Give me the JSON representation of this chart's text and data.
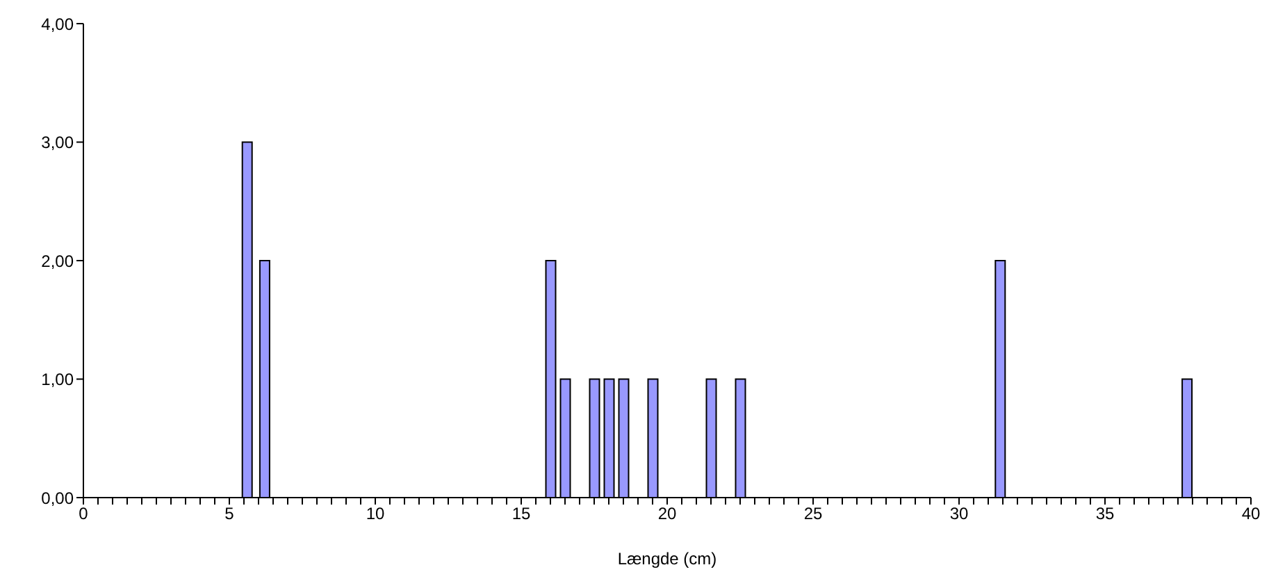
{
  "chart_data": {
    "type": "bar",
    "xlabel": "Længde (cm)",
    "x": [
      5.6,
      6.2,
      16,
      16.5,
      17.5,
      18,
      18.5,
      19.5,
      21.5,
      22.5,
      31.4,
      37.8
    ],
    "values": [
      3,
      2,
      2,
      1,
      1,
      1,
      1,
      1,
      1,
      1,
      2,
      1
    ],
    "color": "#9999ff",
    "xlim": [
      0,
      40
    ],
    "xticks": [
      0,
      {
        "value": 0.5,
        "label": null
      },
      {
        "value": 1,
        "label": null
      },
      {
        "value": 1.5,
        "label": null
      },
      {
        "value": 2,
        "label": null
      },
      {
        "value": 2.5,
        "label": null
      },
      {
        "value": 3,
        "label": null
      },
      {
        "value": 3.5,
        "label": null
      },
      {
        "value": 4,
        "label": null
      },
      {
        "value": 4.5,
        "label": null
      },
      5,
      {
        "value": 5.5,
        "label": null
      },
      {
        "value": 6,
        "label": null
      },
      {
        "value": 6.5,
        "label": null
      },
      {
        "value": 7,
        "label": null
      },
      {
        "value": 7.5,
        "label": null
      },
      {
        "value": 8,
        "label": null
      },
      {
        "value": 8.5,
        "label": null
      },
      {
        "value": 9,
        "label": null
      },
      {
        "value": 9.5,
        "label": null
      },
      10,
      {
        "value": 10.5,
        "label": null
      },
      {
        "value": 11,
        "label": null
      },
      {
        "value": 11.5,
        "label": null
      },
      {
        "value": 12,
        "label": null
      },
      {
        "value": 12.5,
        "label": null
      },
      {
        "value": 13,
        "label": null
      },
      {
        "value": 13.5,
        "label": null
      },
      {
        "value": 14,
        "label": null
      },
      {
        "value": 14.5,
        "label": null
      },
      15,
      {
        "value": 15.5,
        "label": null
      },
      {
        "value": 16,
        "label": null
      },
      {
        "value": 16.5,
        "label": null
      },
      {
        "value": 17,
        "label": null
      },
      {
        "value": 17.5,
        "label": null
      },
      {
        "value": 18,
        "label": null
      },
      {
        "value": 18.5,
        "label": null
      },
      {
        "value": 19,
        "label": null
      },
      {
        "value": 19.5,
        "label": null
      },
      20,
      {
        "value": 20.5,
        "label": null
      },
      {
        "value": 21,
        "label": null
      },
      {
        "value": 21.5,
        "label": null
      },
      {
        "value": 22,
        "label": null
      },
      {
        "value": 22.5,
        "label": null
      },
      {
        "value": 23,
        "label": null
      },
      {
        "value": 23.5,
        "label": null
      },
      {
        "value": 24,
        "label": null
      },
      {
        "value": 24.5,
        "label": null
      },
      25,
      {
        "value": 25.5,
        "label": null
      },
      {
        "value": 26,
        "label": null
      },
      {
        "value": 26.5,
        "label": null
      },
      {
        "value": 27,
        "label": null
      },
      {
        "value": 27.5,
        "label": null
      },
      {
        "value": 28,
        "label": null
      },
      {
        "value": 28.5,
        "label": null
      },
      {
        "value": 29,
        "label": null
      },
      {
        "value": 29.5,
        "label": null
      },
      30,
      {
        "value": 30.5,
        "label": null
      },
      {
        "value": 31,
        "label": null
      },
      {
        "value": 31.5,
        "label": null
      },
      {
        "value": 32,
        "label": null
      },
      {
        "value": 32.5,
        "label": null
      },
      {
        "value": 33,
        "label": null
      },
      {
        "value": 33.5,
        "label": null
      },
      {
        "value": 34,
        "label": null
      },
      {
        "value": 34.5,
        "label": null
      },
      35,
      {
        "value": 35.5,
        "label": null
      },
      {
        "value": 36,
        "label": null
      },
      {
        "value": 36.5,
        "label": null
      },
      {
        "value": 37,
        "label": null
      },
      {
        "value": 37.5,
        "label": null
      },
      {
        "value": 38,
        "label": null
      },
      {
        "value": 38.5,
        "label": null
      },
      {
        "value": 39,
        "label": null
      },
      {
        "value": 39.5,
        "label": null
      },
      40
    ],
    "ylim": [
      0,
      4
    ],
    "yticks": [
      {
        "value": 0,
        "label": "0,00"
      },
      {
        "value": 1,
        "label": "1,00"
      },
      {
        "value": 2,
        "label": "2,00"
      },
      {
        "value": 3,
        "label": "3,00"
      },
      {
        "value": 4,
        "label": "4,00"
      }
    ]
  }
}
